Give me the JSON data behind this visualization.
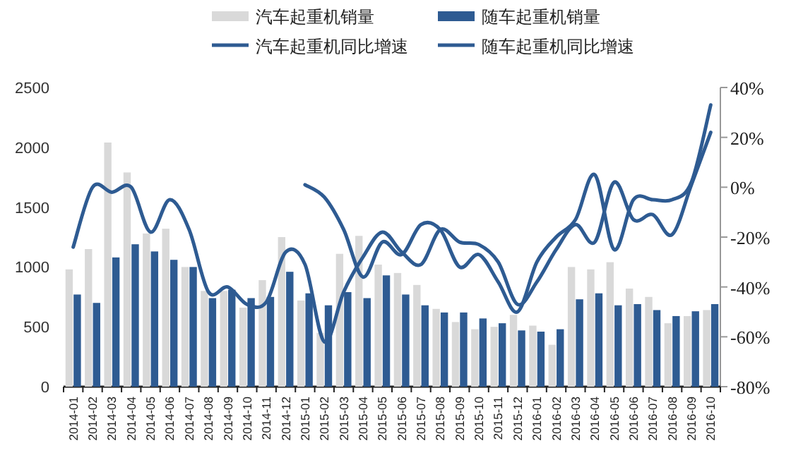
{
  "chart_data": {
    "type": "bar",
    "categories": [
      "2014-01",
      "2014-02",
      "2014-03",
      "2014-04",
      "2014-05",
      "2014-06",
      "2014-07",
      "2014-08",
      "2014-09",
      "2014-10",
      "2014-11",
      "2014-12",
      "2015-01",
      "2015-02",
      "2015-03",
      "2015-04",
      "2015-05",
      "2015-06",
      "2015-07",
      "2015-08",
      "2015-09",
      "2015-10",
      "2015-11",
      "2015-12",
      "2016-01",
      "2016-02",
      "2016-03",
      "2016-04",
      "2016-05",
      "2016-06",
      "2016-07",
      "2016-08",
      "2016-09",
      "2016-10"
    ],
    "series": [
      {
        "name": "汽车起重机销量",
        "color": "#d9d9d9",
        "values": [
          980,
          1150,
          2040,
          1790,
          1280,
          1320,
          1000,
          800,
          800,
          660,
          890,
          1250,
          720,
          450,
          1110,
          1260,
          1020,
          950,
          850,
          650,
          540,
          480,
          500,
          600,
          510,
          350,
          1000,
          980,
          1040,
          820,
          750,
          530,
          590,
          640
        ]
      },
      {
        "name": "随车起重机销量",
        "color": "#2e5b92",
        "values": [
          770,
          700,
          1080,
          1190,
          1130,
          1060,
          1000,
          740,
          810,
          740,
          750,
          960,
          780,
          680,
          790,
          740,
          930,
          770,
          680,
          620,
          620,
          570,
          530,
          470,
          460,
          480,
          730,
          780,
          680,
          690,
          640,
          590,
          630,
          690
        ]
      },
      {
        "name": "汽车起重机同比增速",
        "type": "line",
        "axis": "y2",
        "color": "#2e5b92",
        "values": [
          -24,
          0,
          -2,
          0,
          -18,
          -5,
          -17,
          -42,
          -40,
          -47,
          -46,
          -26,
          -31,
          -62,
          -42,
          -28,
          -18,
          -26,
          -31,
          -17,
          -22,
          -23,
          -30,
          -47,
          -38,
          -25,
          -15,
          -22,
          2,
          -13,
          -11,
          -19,
          1,
          22
        ]
      },
      {
        "name": "随车起重机同比增速",
        "type": "line",
        "axis": "y2",
        "color": "#2e5b92",
        "values": [
          null,
          null,
          null,
          null,
          null,
          null,
          null,
          null,
          null,
          null,
          null,
          null,
          1,
          -4,
          -17,
          -36,
          -22,
          -27,
          -15,
          -17,
          -32,
          -27,
          -38,
          -50,
          -30,
          -20,
          -13,
          5,
          -25,
          -5,
          -5,
          -5,
          2,
          33
        ]
      }
    ],
    "ylim": [
      0,
      2500
    ],
    "yticks": [
      0,
      500,
      1000,
      1500,
      2000,
      2500
    ],
    "y2lim": [
      -80,
      40
    ],
    "y2ticks": [
      {
        "value": -80,
        "label": "-80%"
      },
      {
        "value": -60,
        "label": "-60%"
      },
      {
        "value": -40,
        "label": "-40%"
      },
      {
        "value": -20,
        "label": "-20%"
      },
      {
        "value": 0,
        "label": "0%"
      },
      {
        "value": 20,
        "label": "20%"
      },
      {
        "value": 40,
        "label": "40%"
      }
    ],
    "legend": "top"
  }
}
